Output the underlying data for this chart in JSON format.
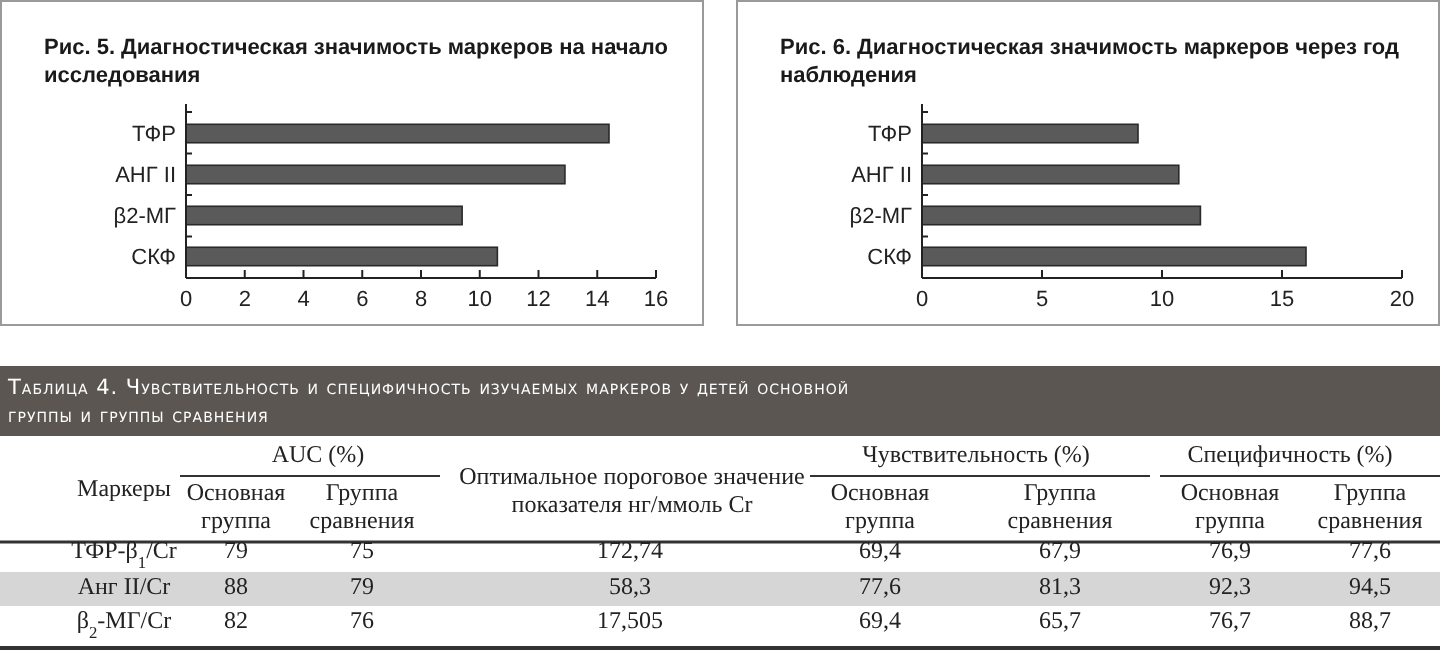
{
  "chart_data": [
    {
      "type": "bar",
      "orientation": "horizontal",
      "title": "Рис. 5. Диагностическая значимость маркеров на начало исследования",
      "categories": [
        "ТФР",
        "АНГ II",
        "β2-МГ",
        "СКФ"
      ],
      "values": [
        14.4,
        12.9,
        9.4,
        10.6
      ],
      "color": "#5a5a5a",
      "xlim": [
        0,
        16
      ],
      "xticks": [
        0,
        2,
        4,
        6,
        8,
        10,
        12,
        14,
        16
      ],
      "grid": false
    },
    {
      "type": "bar",
      "orientation": "horizontal",
      "title": "Рис. 6. Диагностическая значимость маркеров через год наблюдения",
      "categories": [
        "ТФР",
        "АНГ II",
        "β2-МГ",
        "СКФ"
      ],
      "values": [
        9.0,
        10.7,
        11.6,
        16.0
      ],
      "color": "#5a5a5a",
      "xlim": [
        0,
        20
      ],
      "xticks": [
        0,
        5,
        10,
        15,
        20
      ],
      "grid": false
    },
    {
      "type": "other",
      "title": "Таблица 4. Чувствительность и специфичность изучаемых маркеров у детей основной группы и группы сравнения",
      "annotations": [
        "Маркеры",
        "AUC (%)",
        "Основная группа",
        "Группа сравнения",
        "Оптимальное пороговое значение показателя нг/ммоль Cr",
        "Чувствительность (%)",
        "Основная группа",
        "Группа сравнения",
        "Специфичность (%)",
        "Основная группа",
        "Группа сравнения",
        "ТФР-β$_{1}$/Cr",
        "79",
        "75",
        "172,74",
        "69,4",
        "67,9",
        "76,9",
        "77,6",
        "Анг II/Cr",
        "88",
        "79",
        "58,3",
        "77,6",
        "81,3",
        "92,3",
        "94,5",
        "β$_{2}$-МГ/Cr",
        "82",
        "76",
        "17,505",
        "69,4",
        "65,7",
        "76,7",
        "88,7"
      ]
    }
  ]
}
